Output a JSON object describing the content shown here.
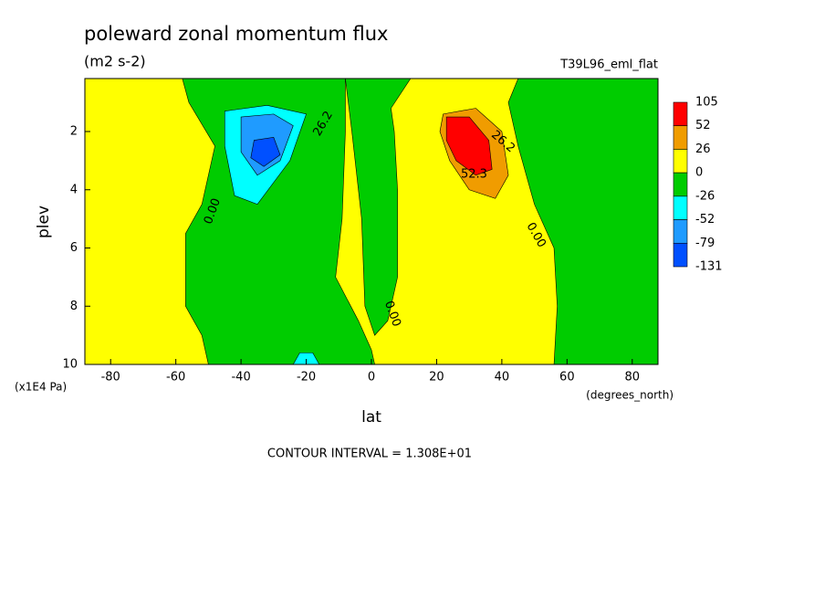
{
  "chart_data": {
    "type": "contour",
    "title": "poleward zonal momentum flux",
    "units": "(m2 s-2)",
    "dataset": "T39L96_eml_flat",
    "x_label": "lat",
    "x_units": "(degrees_north)",
    "y_label": "plev",
    "y_units": "(x1E4 Pa)",
    "footnote": "CONTOUR INTERVAL = 1.308E+01",
    "xlim": [
      -87.9,
      87.9
    ],
    "xticks": [
      -80,
      -60,
      -40,
      -20,
      0,
      20,
      40,
      60,
      80
    ],
    "ylim": [
      10,
      0.18
    ],
    "yticks": [
      2,
      4,
      6,
      8,
      10
    ],
    "background_color": "#ffff00",
    "levels": [
      105,
      52,
      26,
      0,
      -26,
      -52,
      -79,
      -131
    ],
    "colors": [
      "#ff0000",
      "#f09c00",
      "#ffff00",
      "#00cc00",
      "#00ffff",
      "#1f9bff",
      "#0050ff"
    ],
    "regions": [
      {
        "bin": 3,
        "lat": [
          -58,
          -8,
          -8,
          -9,
          -11,
          -4,
          0,
          1,
          -50,
          -52,
          -57,
          -57,
          -52,
          -48,
          -56
        ],
        "plev": [
          0.18,
          0.18,
          2,
          5,
          7,
          8.5,
          9.5,
          10,
          10,
          9,
          8,
          5.5,
          4.5,
          2.5,
          1
        ]
      },
      {
        "bin": 3,
        "lat": [
          -8,
          12,
          6,
          7,
          8,
          8,
          5,
          1,
          -2,
          -3,
          -6
        ],
        "plev": [
          0.18,
          0.18,
          1.2,
          2,
          4,
          7,
          8.5,
          9,
          8,
          5,
          2
        ]
      },
      {
        "bin": 3,
        "lat": [
          45,
          87.9,
          87.9,
          56,
          57,
          56,
          50,
          45,
          42
        ],
        "plev": [
          0.18,
          0.18,
          10,
          10,
          8,
          6,
          4.5,
          2.5,
          1
        ]
      },
      {
        "bin": 1,
        "lat": [
          22,
          32,
          40,
          42,
          38,
          30,
          24,
          21
        ],
        "plev": [
          1.4,
          1.2,
          2,
          3.5,
          4.3,
          4,
          3,
          2
        ]
      },
      {
        "bin": 0,
        "lat": [
          23,
          30,
          36,
          37,
          32,
          26,
          23
        ],
        "plev": [
          1.5,
          1.5,
          2.3,
          3.3,
          3.5,
          3,
          2.3
        ]
      },
      {
        "bin": 4,
        "lat": [
          -45,
          -32,
          -20,
          -25,
          -35,
          -42,
          -45
        ],
        "plev": [
          1.3,
          1.1,
          1.4,
          3,
          4.5,
          4.2,
          2.5
        ]
      },
      {
        "bin": 5,
        "lat": [
          -40,
          -30,
          -24,
          -28,
          -35,
          -40
        ],
        "plev": [
          1.5,
          1.4,
          1.8,
          3,
          3.5,
          2.7
        ]
      },
      {
        "bin": 6,
        "lat": [
          -36,
          -30,
          -28,
          -33,
          -37
        ],
        "plev": [
          2.3,
          2.2,
          2.8,
          3.2,
          2.9
        ]
      },
      {
        "bin": 4,
        "lat": [
          -24,
          -22,
          -18,
          -16
        ],
        "plev": [
          10,
          9.6,
          9.6,
          10
        ]
      }
    ],
    "contour_labels": [
      "26.2",
      "0.00",
      "0.00",
      "0.00",
      "26.2",
      "52.3"
    ]
  }
}
